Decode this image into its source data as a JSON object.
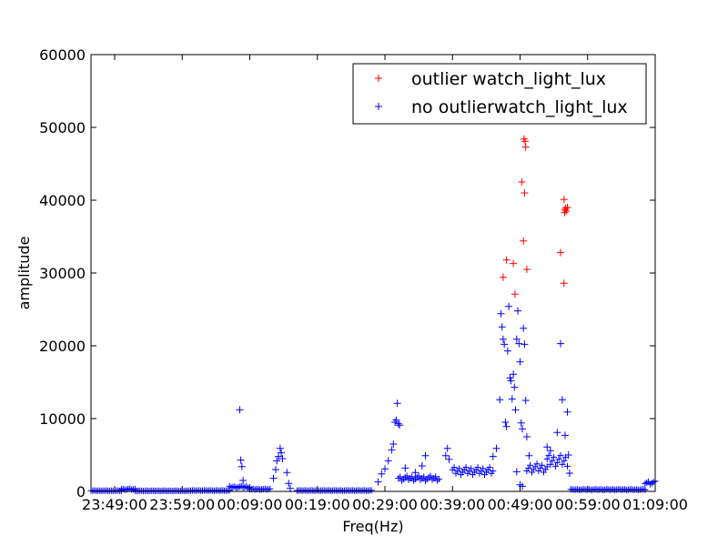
{
  "chart_data": {
    "type": "scatter",
    "xlabel": "Freq(Hz)",
    "ylabel": "amplitude",
    "x_unit": "time of day",
    "xlim": [
      "23:45:30",
      "01:09:00"
    ],
    "ylim": [
      0,
      60000
    ],
    "x_ticks": [
      "23:49:00",
      "23:59:00",
      "00:09:00",
      "00:19:00",
      "00:29:00",
      "00:39:00",
      "00:49:00",
      "00:59:00",
      "01:09:00"
    ],
    "x_tick_labels": [
      "23:49:00",
      "23:59:00",
      "00:09:00",
      "00:19:00",
      "00:29:00",
      "00:39:00",
      "00:49:00",
      "00:59:00",
      "01:09:00"
    ],
    "y_ticks": [
      0,
      10000,
      20000,
      30000,
      40000,
      50000,
      60000
    ],
    "y_tick_labels": [
      "0",
      "10000",
      "20000",
      "30000",
      "40000",
      "50000",
      "60000"
    ],
    "legend_position": "top-right",
    "series": [
      {
        "name": "outlier watch_light_lux",
        "color": "#ff0000",
        "marker": "plus",
        "points": [
          [
            "00:46:30",
            29400
          ],
          [
            "00:47:00",
            31800
          ],
          [
            "00:48:00",
            31300
          ],
          [
            "00:48:15",
            27100
          ],
          [
            "00:49:15",
            42500
          ],
          [
            "00:49:30",
            34400
          ],
          [
            "00:49:35",
            48400
          ],
          [
            "00:49:40",
            41000
          ],
          [
            "00:49:45",
            48100
          ],
          [
            "00:49:50",
            47300
          ],
          [
            "00:50:00",
            30500
          ],
          [
            "00:55:00",
            32800
          ],
          [
            "00:55:30",
            40100
          ],
          [
            "00:55:30",
            28600
          ],
          [
            "00:55:35",
            38300
          ],
          [
            "00:55:40",
            38700
          ],
          [
            "00:55:45",
            38900
          ],
          [
            "00:55:50",
            38500
          ],
          [
            "00:56:00",
            39000
          ]
        ]
      },
      {
        "name": "no outlierwatch_light_lux",
        "color": "#0000ff",
        "marker": "plus",
        "segments": [
          {
            "from": "23:45:30",
            "to": "23:50:00",
            "amplitude": 150
          },
          {
            "from": "23:50:00",
            "to": "23:52:00",
            "amplitude": 450
          },
          {
            "from": "23:52:00",
            "to": "00:06:00",
            "amplitude": 120
          },
          {
            "from": "00:06:00",
            "to": "00:09:00",
            "amplitude": 600
          },
          {
            "from": "00:09:00",
            "to": "00:12:00",
            "amplitude": 300
          },
          {
            "from": "00:16:00",
            "to": "00:27:00",
            "amplitude": 120
          },
          {
            "from": "00:31:00",
            "to": "00:37:00",
            "amplitude": 1800
          },
          {
            "from": "00:39:00",
            "to": "00:45:00",
            "amplitude": 2800
          },
          {
            "from": "00:50:00",
            "to": "00:53:00",
            "amplitude": 3200
          },
          {
            "from": "00:53:00",
            "to": "00:56:00",
            "amplitude": 4200
          },
          {
            "from": "00:56:30",
            "to": "01:07:30",
            "amplitude": 250
          },
          {
            "from": "01:07:30",
            "to": "01:09:00",
            "amplitude": 1200
          }
        ],
        "points": [
          [
            "00:07:30",
            11200
          ],
          [
            "00:07:40",
            4300
          ],
          [
            "00:07:50",
            3400
          ],
          [
            "00:08:00",
            1500
          ],
          [
            "00:12:30",
            1800
          ],
          [
            "00:12:50",
            3000
          ],
          [
            "00:13:00",
            4200
          ],
          [
            "00:13:15",
            4800
          ],
          [
            "00:13:30",
            5900
          ],
          [
            "00:13:40",
            5300
          ],
          [
            "00:13:50",
            4500
          ],
          [
            "00:14:30",
            2600
          ],
          [
            "00:14:45",
            1100
          ],
          [
            "00:15:00",
            400
          ],
          [
            "00:28:00",
            1300
          ],
          [
            "00:28:30",
            2400
          ],
          [
            "00:29:00",
            3100
          ],
          [
            "00:29:30",
            4200
          ],
          [
            "00:30:00",
            5700
          ],
          [
            "00:30:15",
            6500
          ],
          [
            "00:30:30",
            9500
          ],
          [
            "00:30:40",
            9800
          ],
          [
            "00:30:50",
            12100
          ],
          [
            "00:31:00",
            9300
          ],
          [
            "00:31:10",
            9100
          ],
          [
            "00:32:00",
            3200
          ],
          [
            "00:33:30",
            2600
          ],
          [
            "00:34:30",
            3500
          ],
          [
            "00:35:00",
            4900
          ],
          [
            "00:38:00",
            4900
          ],
          [
            "00:38:15",
            5900
          ],
          [
            "00:38:30",
            4400
          ],
          [
            "00:45:00",
            4800
          ],
          [
            "00:45:30",
            5900
          ],
          [
            "00:46:00",
            12600
          ],
          [
            "00:46:10",
            24400
          ],
          [
            "00:46:20",
            22600
          ],
          [
            "00:46:30",
            20900
          ],
          [
            "00:46:40",
            20200
          ],
          [
            "00:46:50",
            9500
          ],
          [
            "00:47:00",
            8900
          ],
          [
            "00:47:10",
            19300
          ],
          [
            "00:47:20",
            25400
          ],
          [
            "00:47:30",
            15600
          ],
          [
            "00:47:40",
            15200
          ],
          [
            "00:47:50",
            12700
          ],
          [
            "00:48:00",
            16100
          ],
          [
            "00:48:10",
            14300
          ],
          [
            "00:48:20",
            11200
          ],
          [
            "00:48:30",
            20900
          ],
          [
            "00:48:40",
            24800
          ],
          [
            "00:48:50",
            20300
          ],
          [
            "00:49:00",
            17800
          ],
          [
            "00:49:10",
            9400
          ],
          [
            "00:49:20",
            8600
          ],
          [
            "00:49:30",
            22400
          ],
          [
            "00:49:40",
            20200
          ],
          [
            "00:49:50",
            12500
          ],
          [
            "00:50:00",
            7500
          ],
          [
            "00:50:20",
            4900
          ],
          [
            "00:48:30",
            2700
          ],
          [
            "00:49:00",
            900
          ],
          [
            "00:49:20",
            700
          ],
          [
            "00:53:00",
            6100
          ],
          [
            "00:53:30",
            5600
          ],
          [
            "00:54:30",
            8100
          ],
          [
            "00:55:00",
            20300
          ],
          [
            "00:55:15",
            12600
          ],
          [
            "00:55:40",
            7700
          ],
          [
            "00:56:00",
            10900
          ],
          [
            "00:56:10",
            5000
          ],
          [
            "00:56:20",
            2500
          ]
        ]
      }
    ]
  }
}
